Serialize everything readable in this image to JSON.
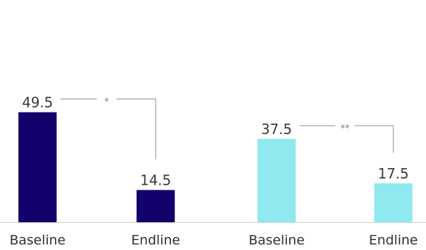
{
  "chart_data": {
    "type": "bar",
    "categories": [
      "Baseline",
      "Endline",
      "Baseline",
      "Endline"
    ],
    "values": [
      49.5,
      14.5,
      37.5,
      17.5
    ],
    "value_labels": [
      "49.5",
      "14.5",
      "37.5",
      "17.5"
    ],
    "bar_colors": [
      "#13006b",
      "#13006b",
      "#8fe9ef",
      "#8fe9ef"
    ],
    "ylim": [
      0,
      100
    ],
    "grid": false,
    "title": "",
    "xlabel": "",
    "ylabel": "",
    "significance": [
      {
        "from": 0,
        "to": 1,
        "label": "*"
      },
      {
        "from": 2,
        "to": 3,
        "label": "**"
      }
    ]
  }
}
